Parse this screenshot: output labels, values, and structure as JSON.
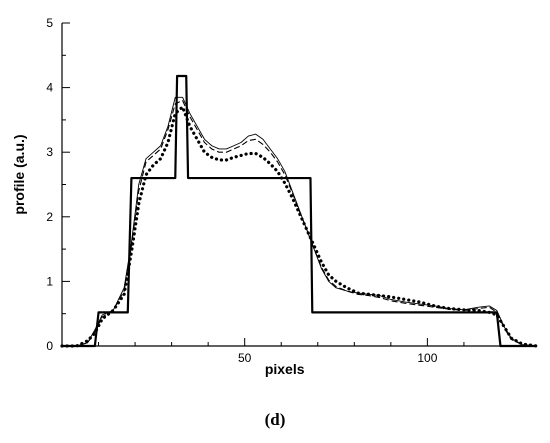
{
  "chart_data": {
    "type": "line",
    "title": "",
    "xlabel": "pixels",
    "ylabel": "profile (a.u.)",
    "xlim": [
      0,
      130
    ],
    "ylim": [
      0,
      5
    ],
    "xticks": [
      50,
      100
    ],
    "yticks": [
      0,
      1,
      2,
      3,
      4,
      5
    ],
    "grid": false,
    "panel_label": "(d)",
    "series": [
      {
        "style": "solid-thick",
        "x": [
          0,
          9,
          10,
          18,
          19,
          31,
          31.5,
          34,
          34.5,
          68,
          68.5,
          119,
          120,
          130
        ],
        "y": [
          0,
          0,
          0.52,
          0.52,
          2.6,
          2.6,
          4.18,
          4.18,
          2.6,
          2.6,
          0.52,
          0.52,
          0,
          0
        ]
      },
      {
        "style": "solid-thin",
        "x": [
          0,
          4,
          7,
          9,
          11,
          14,
          17,
          19,
          21,
          23,
          25,
          27,
          29,
          31,
          33,
          35,
          37,
          39,
          41,
          43,
          45,
          47,
          49,
          51,
          53,
          55,
          57,
          59,
          61,
          63,
          65,
          67,
          69,
          71,
          73,
          75,
          78,
          81,
          84,
          87,
          90,
          94,
          98,
          102,
          106,
          110,
          114,
          117,
          119,
          121,
          123,
          126,
          130
        ],
        "y": [
          0,
          0,
          0.05,
          0.25,
          0.48,
          0.55,
          0.9,
          1.6,
          2.5,
          2.9,
          3.0,
          3.1,
          3.4,
          3.85,
          3.85,
          3.6,
          3.4,
          3.2,
          3.1,
          3.05,
          3.05,
          3.1,
          3.15,
          3.25,
          3.28,
          3.2,
          3.05,
          2.9,
          2.7,
          2.4,
          2.1,
          1.8,
          1.5,
          1.2,
          1.0,
          0.9,
          0.85,
          0.82,
          0.8,
          0.78,
          0.72,
          0.68,
          0.65,
          0.62,
          0.58,
          0.56,
          0.6,
          0.62,
          0.55,
          0.3,
          0.12,
          0.02,
          0
        ]
      },
      {
        "style": "dashed",
        "x": [
          0,
          4,
          7,
          9,
          11,
          14,
          17,
          19,
          21,
          23,
          25,
          27,
          29,
          31,
          33,
          35,
          37,
          39,
          41,
          43,
          45,
          47,
          49,
          51,
          53,
          55,
          57,
          59,
          61,
          63,
          65,
          67,
          69,
          71,
          73,
          75,
          78,
          81,
          84,
          87,
          90,
          94,
          98,
          102,
          106,
          110,
          114,
          117,
          119,
          121,
          123,
          126,
          130
        ],
        "y": [
          0,
          0,
          0.05,
          0.22,
          0.45,
          0.55,
          0.85,
          1.55,
          2.4,
          2.85,
          2.95,
          3.05,
          3.35,
          3.75,
          3.8,
          3.55,
          3.35,
          3.15,
          3.05,
          3.0,
          3.0,
          3.05,
          3.1,
          3.18,
          3.2,
          3.12,
          3.0,
          2.85,
          2.65,
          2.38,
          2.08,
          1.8,
          1.5,
          1.22,
          1.02,
          0.92,
          0.85,
          0.8,
          0.78,
          0.75,
          0.7,
          0.66,
          0.63,
          0.6,
          0.57,
          0.55,
          0.58,
          0.6,
          0.52,
          0.28,
          0.1,
          0.02,
          0
        ]
      },
      {
        "style": "dotted-thick",
        "x": [
          0,
          4,
          7,
          9,
          11,
          14,
          17,
          19,
          21,
          23,
          25,
          27,
          29,
          31,
          33,
          35,
          37,
          39,
          41,
          43,
          45,
          47,
          49,
          51,
          53,
          55,
          57,
          59,
          61,
          63,
          65,
          67,
          69,
          71,
          73,
          75,
          78,
          81,
          84,
          87,
          90,
          94,
          98,
          102,
          106,
          110,
          114,
          117,
          119,
          121,
          123,
          126,
          130
        ],
        "y": [
          0,
          0,
          0.08,
          0.2,
          0.42,
          0.55,
          0.8,
          1.45,
          2.2,
          2.65,
          2.8,
          2.9,
          3.15,
          3.6,
          3.7,
          3.4,
          3.2,
          3.0,
          2.92,
          2.88,
          2.88,
          2.92,
          2.95,
          2.98,
          2.98,
          2.92,
          2.82,
          2.7,
          2.52,
          2.3,
          2.05,
          1.8,
          1.55,
          1.3,
          1.1,
          1.0,
          0.9,
          0.82,
          0.8,
          0.78,
          0.76,
          0.72,
          0.68,
          0.62,
          0.58,
          0.56,
          0.55,
          0.52,
          0.48,
          0.3,
          0.12,
          0.03,
          0
        ]
      }
    ]
  }
}
